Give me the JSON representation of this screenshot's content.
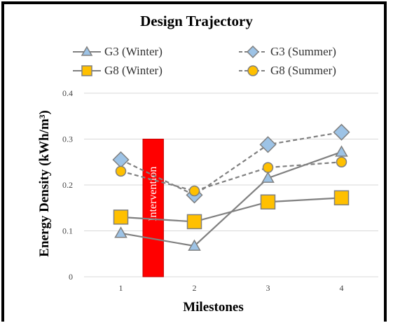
{
  "chart_data": {
    "type": "line",
    "title": "Design Trajectory",
    "xlabel": "Milestones",
    "ylabel": "Energy Density (kWh/m³)",
    "categories": [
      "1",
      "2",
      "3",
      "4"
    ],
    "ylim": [
      0,
      0.4
    ],
    "yticks": [
      "0",
      "0.1",
      "0.2",
      "0.3",
      "0.4"
    ],
    "grid": true,
    "legend_position": "top",
    "annotation": {
      "label": "Intervention",
      "x_range": [
        1.3,
        1.58
      ],
      "y_top": 0.3,
      "color": "#ff0000"
    },
    "series": [
      {
        "name": "G3 (Winter)",
        "values": [
          0.095,
          0.067,
          0.215,
          0.272
        ],
        "color": "#9dc3e6",
        "line_color": "#808080",
        "marker": "triangle",
        "dashed": false
      },
      {
        "name": "G3 (Summer)",
        "values": [
          0.255,
          0.178,
          0.288,
          0.315
        ],
        "color": "#9dc3e6",
        "line_color": "#808080",
        "marker": "diamond",
        "dashed": true
      },
      {
        "name": "G8 (Winter)",
        "values": [
          0.13,
          0.12,
          0.163,
          0.172
        ],
        "color": "#ffc000",
        "line_color": "#808080",
        "marker": "square",
        "dashed": false
      },
      {
        "name": "G8 (Summer)",
        "values": [
          0.23,
          0.187,
          0.238,
          0.25
        ],
        "color": "#ffc000",
        "line_color": "#808080",
        "marker": "circle",
        "dashed": true
      }
    ]
  }
}
